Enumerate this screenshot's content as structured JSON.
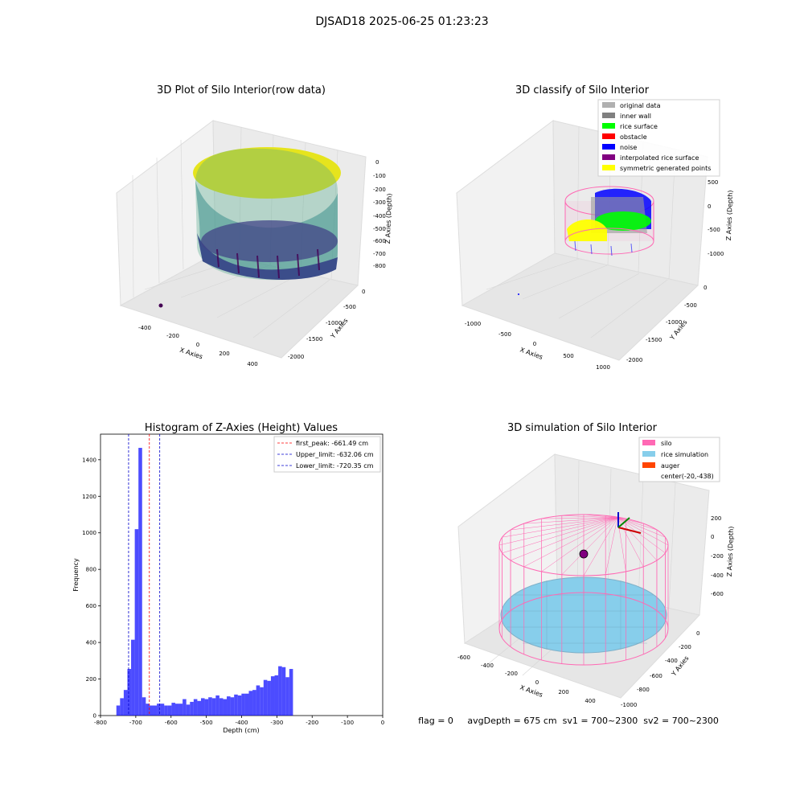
{
  "suptitle": "DJSAD18 2025-06-25 01:23:23",
  "colors": {
    "hist_bar": "#0000ff",
    "first_peak": "#ff0000",
    "limits": "#0000cc",
    "silo": "#ff69b4",
    "rice": "#87ceeb",
    "auger": "#ff4500"
  },
  "panel_raw": {
    "title": "3D Plot of Silo Interior(row data)",
    "xlabel": "X Axies",
    "ylabel": "Y Axies",
    "zlabel": "Z Axies (Depth)",
    "x_ticks": [
      "-400",
      "-200",
      "0",
      "200",
      "400"
    ],
    "y_ticks": [
      "0",
      "-500",
      "-1000",
      "-1500",
      "-2000"
    ],
    "z_ticks": [
      "0",
      "-100",
      "-200",
      "-300",
      "-400",
      "-500",
      "-600",
      "-700",
      "-800"
    ]
  },
  "panel_classify": {
    "title": "3D classify of Silo Interior",
    "xlabel": "X Axies",
    "ylabel": "Y Axies",
    "zlabel": "Z Axies (Depth)",
    "x_ticks": [
      "-1000",
      "-500",
      "0",
      "500",
      "1000"
    ],
    "y_ticks": [
      "0",
      "-500",
      "-1000",
      "-1500",
      "-2000"
    ],
    "z_ticks": [
      "500",
      "0",
      "-500",
      "-1000"
    ],
    "legend": [
      {
        "label": "original data",
        "color": "#b0b0b0"
      },
      {
        "label": "inner wall",
        "color": "#808080"
      },
      {
        "label": "rice surface",
        "color": "#00ff00"
      },
      {
        "label": "obstacle",
        "color": "#ff0000"
      },
      {
        "label": "noise",
        "color": "#0000ff"
      },
      {
        "label": "interpolated rice surface",
        "color": "#800080"
      },
      {
        "label": "symmetric generated points",
        "color": "#ffff00"
      }
    ]
  },
  "panel_sim": {
    "title": "3D simulation of Silo Interior",
    "xlabel": "X Axies",
    "ylabel": "Y Axies",
    "zlabel": "Z Axies (Depth)",
    "x_ticks": [
      "-600",
      "-400",
      "-200",
      "0",
      "200",
      "400"
    ],
    "y_ticks": [
      "0",
      "-200",
      "-400",
      "-600",
      "-800",
      "-1000"
    ],
    "z_ticks": [
      "200",
      "0",
      "-200",
      "-400",
      "-600"
    ],
    "legend": [
      {
        "label": "silo",
        "color": "#ff69b4"
      },
      {
        "label": "rice simulation",
        "color": "#87ceeb"
      },
      {
        "label": "auger",
        "color": "#ff4500"
      },
      {
        "label": "center(-20,-438)",
        "color": ""
      }
    ],
    "status": "flag = 0     avgDepth = 675 cm  sv1 = 700~2300  sv2 = 700~2300"
  },
  "chart_data": [
    {
      "type": "bar",
      "title": "Histogram of Z-Axies (Height) Values",
      "xlabel": "Depth (cm)",
      "ylabel": "Frequency",
      "xlim": [
        -800,
        0
      ],
      "ylim": [
        0,
        1540
      ],
      "x_ticks": [
        -800,
        -700,
        -600,
        -500,
        -400,
        -300,
        -200,
        -100,
        0
      ],
      "y_ticks": [
        0,
        200,
        400,
        600,
        800,
        1000,
        1200,
        1400
      ],
      "bin_start": -755,
      "bin_width": 10.43,
      "values": [
        55,
        95,
        140,
        255,
        415,
        1020,
        1465,
        100,
        65,
        55,
        55,
        65,
        65,
        55,
        55,
        70,
        65,
        65,
        90,
        60,
        75,
        90,
        80,
        95,
        90,
        100,
        95,
        110,
        95,
        90,
        105,
        100,
        115,
        110,
        120,
        120,
        135,
        140,
        165,
        155,
        195,
        190,
        215,
        220,
        270,
        265,
        210,
        255
      ],
      "vlines": [
        {
          "label": "first_peak: -661.49 cm",
          "x": -661.49,
          "color": "#ff0000"
        },
        {
          "label": "Upper_limit: -632.06 cm",
          "x": -632.06,
          "color": "#0000cc"
        },
        {
          "label": "Lower_limit: -720.35 cm",
          "x": -720.35,
          "color": "#0000cc"
        }
      ],
      "legend_position": "upper-right"
    }
  ]
}
